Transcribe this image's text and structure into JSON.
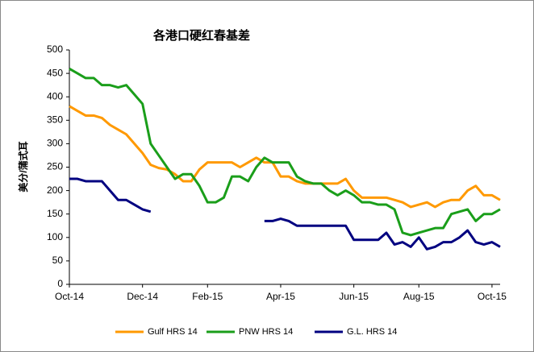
{
  "chart_data": {
    "type": "line",
    "title": "各港口硬红春基差",
    "y_label": "美分/蒲式耳",
    "categories": [
      "Oct-14",
      null,
      null,
      null,
      null,
      null,
      null,
      null,
      null,
      "Dec-14",
      null,
      null,
      null,
      null,
      null,
      null,
      null,
      "Feb-15",
      null,
      null,
      null,
      null,
      null,
      null,
      null,
      null,
      "Apr-15",
      null,
      null,
      null,
      null,
      null,
      null,
      null,
      null,
      "Jun-15",
      null,
      null,
      null,
      null,
      null,
      null,
      null,
      "Aug-15",
      null,
      null,
      null,
      null,
      null,
      null,
      null,
      null,
      "Oct-15",
      null
    ],
    "series": [
      {
        "name": "Gulf HRS 14",
        "color": "#ff9900",
        "values": [
          380,
          370,
          360,
          360,
          355,
          340,
          330,
          320,
          300,
          280,
          255,
          248,
          245,
          235,
          220,
          220,
          245,
          260,
          260,
          260,
          260,
          250,
          260,
          270,
          260,
          260,
          230,
          230,
          220,
          215,
          215,
          215,
          215,
          215,
          225,
          200,
          185,
          185,
          185,
          185,
          180,
          175,
          165,
          170,
          175,
          165,
          175,
          180,
          180,
          200,
          210,
          190,
          190,
          180
        ]
      },
      {
        "name": "PNW HRS 14",
        "color": "#1a9e1a",
        "values": [
          460,
          450,
          440,
          440,
          425,
          425,
          420,
          425,
          405,
          385,
          300,
          275,
          250,
          225,
          235,
          235,
          210,
          175,
          175,
          185,
          230,
          230,
          220,
          250,
          270,
          260,
          260,
          260,
          230,
          220,
          215,
          215,
          200,
          190,
          200,
          190,
          175,
          175,
          170,
          170,
          160,
          110,
          105,
          110,
          115,
          120,
          120,
          150,
          155,
          160,
          135,
          150,
          150,
          160
        ]
      },
      {
        "name": "G.L. HRS 14",
        "color": "#000080",
        "values": [
          225,
          225,
          220,
          220,
          220,
          200,
          180,
          180,
          170,
          160,
          155,
          null,
          null,
          null,
          null,
          null,
          null,
          null,
          null,
          null,
          null,
          null,
          null,
          null,
          135,
          135,
          140,
          135,
          125,
          125,
          125,
          125,
          125,
          125,
          125,
          95,
          95,
          95,
          95,
          110,
          85,
          90,
          80,
          100,
          75,
          80,
          90,
          90,
          100,
          115,
          90,
          85,
          90,
          80
        ]
      }
    ],
    "ylim": [
      0,
      500
    ],
    "yticks": [
      0,
      50,
      100,
      150,
      200,
      250,
      300,
      350,
      400,
      450,
      500
    ]
  }
}
